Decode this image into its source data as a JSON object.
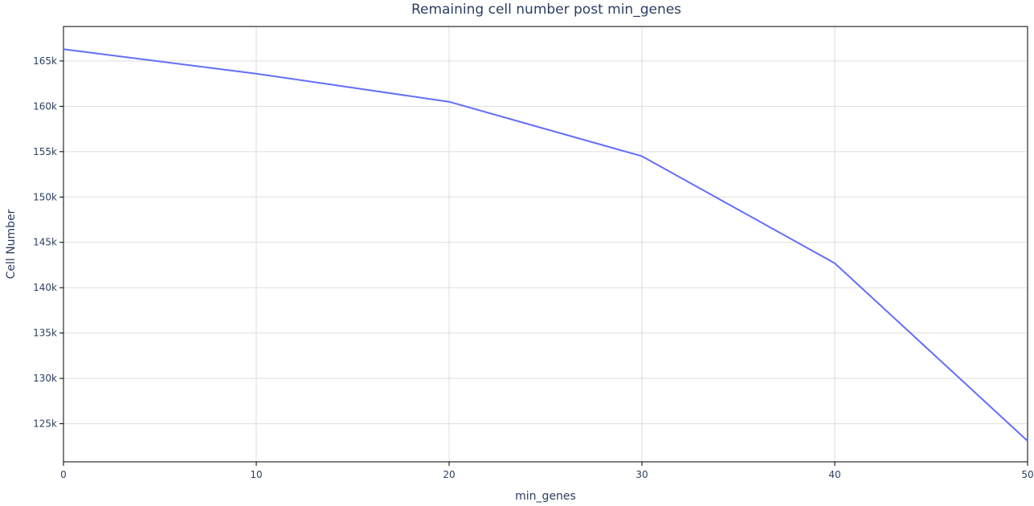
{
  "chart_data": {
    "type": "line",
    "title": "Remaining cell number post min_genes",
    "xlabel": "min_genes",
    "ylabel": "Cell Number",
    "x": [
      0,
      10,
      20,
      30,
      40,
      50
    ],
    "series": [
      {
        "values": [
          166300,
          163600,
          160500,
          154500,
          142700,
          123100
        ],
        "color": "#636efa"
      }
    ],
    "xlim": [
      0,
      50
    ],
    "ylim": [
      120800,
      168800
    ],
    "xticks": [
      0,
      10,
      20,
      30,
      40,
      50
    ],
    "xtick_labels": [
      "0",
      "10",
      "20",
      "30",
      "40",
      "50"
    ],
    "yticks": [
      125000,
      130000,
      135000,
      140000,
      145000,
      150000,
      155000,
      160000,
      165000
    ],
    "ytick_labels": [
      "125k",
      "130k",
      "135k",
      "140k",
      "145k",
      "150k",
      "155k",
      "160k",
      "165k"
    ],
    "grid": true,
    "legend": "none"
  }
}
